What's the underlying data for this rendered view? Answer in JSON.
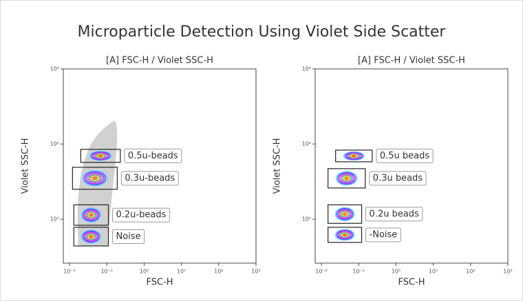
{
  "title": "Microparticle Detection Using Violet Side Scatter",
  "chart_data": [
    {
      "type": "gated-contour",
      "title": "[A] FSC-H / Violet SSC-H",
      "xlabel": "FSC-H",
      "ylabel": "Violet SSC-H",
      "xscale": "log",
      "yscale": "log",
      "xlim": [
        0.0068,
        1000
      ],
      "ylim": [
        2.6,
        1000
      ],
      "xticks": [
        {
          "value": 0.01,
          "label": "10⁻²"
        },
        {
          "value": 0.1,
          "label": "10⁻¹"
        },
        {
          "value": 1,
          "label": "10⁰"
        },
        {
          "value": 10,
          "label": "10¹"
        },
        {
          "value": 100,
          "label": "10²"
        },
        {
          "value": 1000,
          "label": "10³"
        }
      ],
      "yticks": [
        {
          "value": 10,
          "label": "10¹"
        },
        {
          "value": 100,
          "label": "10²"
        },
        {
          "value": 1000,
          "label": "10³"
        }
      ],
      "background_events": true,
      "gates": [
        {
          "name": "0.5u-beads",
          "x": [
            0.02,
            0.23
          ],
          "y": [
            57,
            85
          ]
        },
        {
          "name": "0.3u-beads",
          "x": [
            0.012,
            0.19
          ],
          "y": [
            25,
            49
          ]
        },
        {
          "name": "0.2u-beads",
          "x": [
            0.013,
            0.11
          ],
          "y": [
            8.3,
            15.5
          ]
        },
        {
          "name": "Noise",
          "x": [
            0.013,
            0.11
          ],
          "y": [
            4.4,
            7.8
          ]
        }
      ]
    },
    {
      "type": "gated-contour",
      "title": "[A] FSC-H / Violet SSC-H",
      "xlabel": "FSC-H",
      "ylabel": "Violet SSC-H",
      "xscale": "log",
      "yscale": "log",
      "xlim": [
        0.0068,
        1000
      ],
      "ylim": [
        2.6,
        1000
      ],
      "xticks": [
        {
          "value": 0.01,
          "label": "10⁻²"
        },
        {
          "value": 0.1,
          "label": "10⁻¹"
        },
        {
          "value": 1,
          "label": "10⁰"
        },
        {
          "value": 10,
          "label": "10¹"
        },
        {
          "value": 100,
          "label": "10²"
        },
        {
          "value": 1000,
          "label": "10³"
        }
      ],
      "yticks": [
        {
          "value": 10,
          "label": "10¹"
        },
        {
          "value": 100,
          "label": "10²"
        },
        {
          "value": 1000,
          "label": "10³"
        }
      ],
      "background_events": false,
      "gates": [
        {
          "name": "0.5u beads",
          "x": [
            0.024,
            0.23
          ],
          "y": [
            58,
            83
          ]
        },
        {
          "name": "0.3u beads",
          "x": [
            0.015,
            0.15
          ],
          "y": [
            26,
            47
          ]
        },
        {
          "name": "0.2u beads",
          "x": [
            0.015,
            0.12
          ],
          "y": [
            8.8,
            15.5
          ]
        },
        {
          "name": "-Noise",
          "x": [
            0.015,
            0.12
          ],
          "y": [
            4.9,
            7.8
          ]
        }
      ]
    }
  ]
}
